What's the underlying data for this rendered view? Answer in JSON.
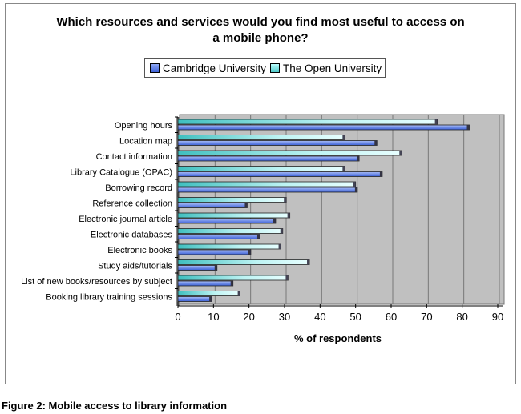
{
  "caption": "Figure 2: Mobile access to library information",
  "chart_data": {
    "type": "bar",
    "orientation": "horizontal",
    "title": "Which resources and services would you find most useful to access on a mobile phone?",
    "title_lines": [
      "Which resources and services would you find most useful to access on",
      "a mobile phone?"
    ],
    "xlabel": "% of respondents",
    "ylabel": "",
    "xlim": [
      0,
      90
    ],
    "xticks": [
      0,
      10,
      20,
      30,
      40,
      50,
      60,
      70,
      80,
      90
    ],
    "grid": true,
    "legend_placement": "top",
    "categories": [
      "Opening hours",
      "Location map",
      "Contact information",
      "Library Catalogue (OPAC)",
      "Borrowing record",
      "Reference collection",
      "Electronic journal article",
      "Electronic databases",
      "Electronic books",
      "Study aids/tutorials",
      "List of new books/resources by subject",
      "Booking library training sessions"
    ],
    "series": [
      {
        "name": "Cambridge University",
        "color": "#5b7fe8",
        "values": [
          82,
          56,
          51,
          57.5,
          50.5,
          19.5,
          27.5,
          23,
          20.5,
          11,
          15.5,
          9.5
        ]
      },
      {
        "name": "The Open University",
        "color": "#4fc9c9",
        "values": [
          73,
          47,
          63,
          47,
          50,
          30.5,
          31.5,
          29.5,
          29,
          37,
          31,
          17.5
        ]
      }
    ]
  }
}
